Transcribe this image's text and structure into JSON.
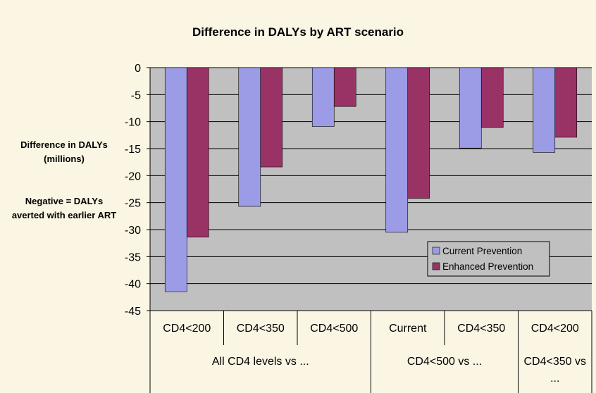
{
  "chart_data": {
    "type": "bar",
    "title": "Difference in DALYs by ART scenario",
    "y_label": [
      "Difference in DALYs (millions)",
      "Negative = DALYs averted with earlier ART"
    ],
    "categories": [
      "CD4<200",
      "CD4<350",
      "CD4<500",
      "Current",
      "CD4<350",
      "CD4<200"
    ],
    "group_labels": [
      "All CD4 levels vs ...",
      null,
      null,
      "CD4<500 vs ...",
      null,
      "CD4<350 vs ..."
    ],
    "series": [
      {
        "name": "Current Prevention",
        "color": "#9c9ce6",
        "values": [
          -41.5,
          -25.7,
          -10.9,
          -30.5,
          -14.9,
          -15.7
        ]
      },
      {
        "name": "Enhanced Prevention",
        "color": "#993366",
        "values": [
          -31.4,
          -18.4,
          -7.2,
          -24.2,
          -11.1,
          -12.9
        ]
      }
    ],
    "ylim": [
      -45,
      0
    ],
    "yticks": [
      0,
      -5,
      -10,
      -15,
      -20,
      -25,
      -30,
      -35,
      -40,
      -45
    ],
    "grid": true,
    "legend": "right"
  }
}
